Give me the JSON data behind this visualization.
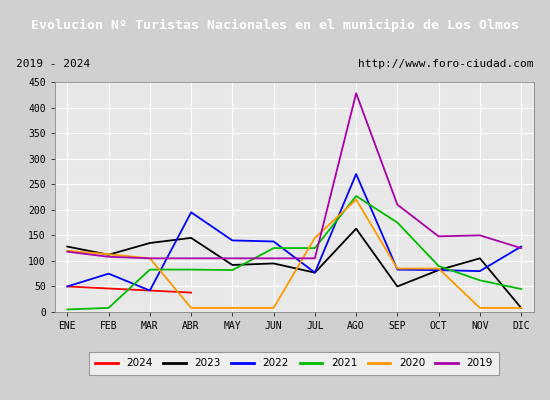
{
  "title": "Evolucion Nº Turistas Nacionales en el municipio de Los Olmos",
  "subtitle_left": "2019 - 2024",
  "subtitle_right": "http://www.foro-ciudad.com",
  "title_bg_color": "#4f86c6",
  "title_text_color": "#ffffff",
  "months": [
    "ENE",
    "FEB",
    "MAR",
    "ABR",
    "MAY",
    "JUN",
    "JUL",
    "AGO",
    "SEP",
    "OCT",
    "NOV",
    "DIC"
  ],
  "ylim": [
    0,
    450
  ],
  "yticks": [
    0,
    50,
    100,
    150,
    200,
    250,
    300,
    350,
    400,
    450
  ],
  "series": {
    "2024": {
      "color": "#ff0000",
      "values": [
        50,
        null,
        null,
        38,
        null,
        null,
        null,
        null,
        null,
        null,
        null,
        null
      ]
    },
    "2023": {
      "color": "#000000",
      "values": [
        128,
        112,
        135,
        145,
        92,
        95,
        77,
        163,
        50,
        82,
        105,
        8
      ]
    },
    "2022": {
      "color": "#0000ff",
      "values": [
        50,
        75,
        42,
        195,
        140,
        138,
        77,
        270,
        83,
        82,
        80,
        128
      ]
    },
    "2021": {
      "color": "#00bb00",
      "values": [
        5,
        8,
        83,
        83,
        82,
        125,
        125,
        227,
        175,
        90,
        62,
        45
      ]
    },
    "2020": {
      "color": "#ff9900",
      "values": [
        120,
        113,
        105,
        8,
        8,
        8,
        145,
        220,
        85,
        85,
        8,
        8
      ]
    },
    "2019": {
      "color": "#aa00aa",
      "values": [
        118,
        108,
        105,
        105,
        105,
        105,
        105,
        428,
        210,
        148,
        150,
        125
      ]
    }
  },
  "legend_order": [
    "2024",
    "2023",
    "2022",
    "2021",
    "2020",
    "2019"
  ],
  "bg_plot_color": "#e8e8e8",
  "grid_color": "#ffffff",
  "outer_bg": "#d0d0d0",
  "subtitle_bg": "#f0f0f0",
  "subtitle_border": "#888888"
}
